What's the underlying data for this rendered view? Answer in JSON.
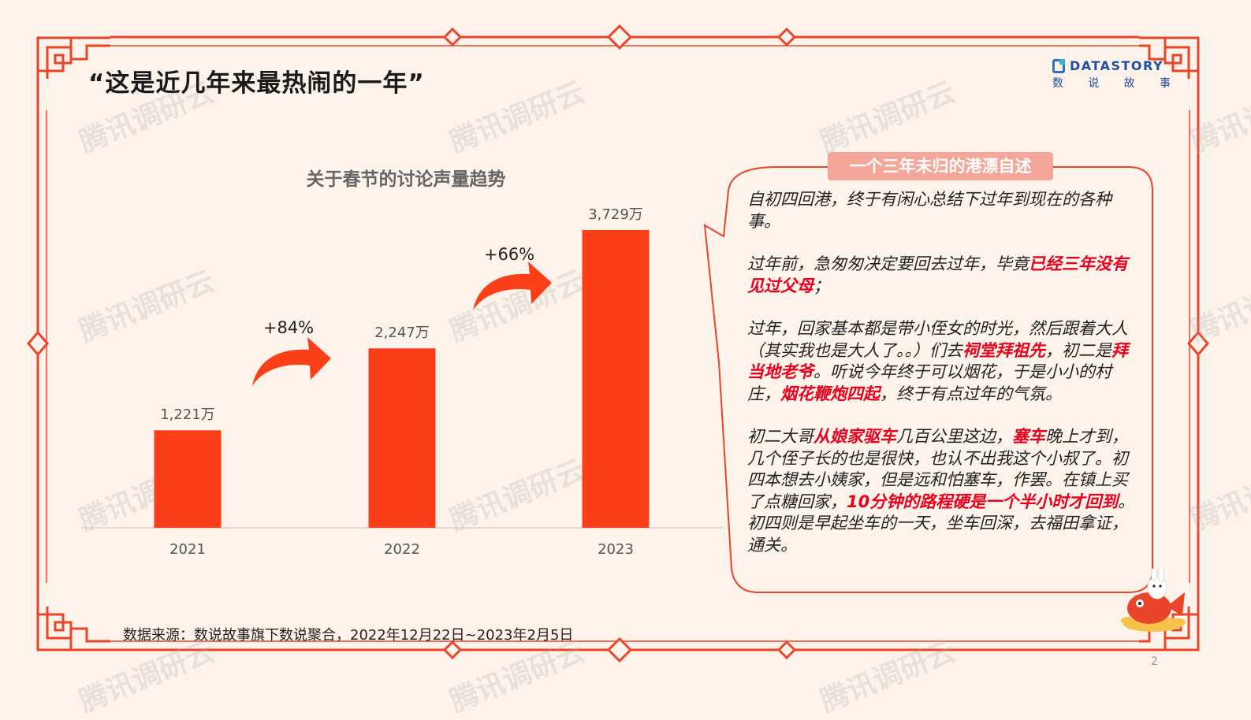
{
  "page": {
    "title": "“这是近几年来最热闹的一年”",
    "page_number": "2",
    "source": "数据来源：数说故事旗下数说聚合，2022年12月22日~2023年2月5日",
    "watermark": "腾讯调研云"
  },
  "logo": {
    "wordmark": "DATASTORY",
    "chinese": [
      "数",
      "说",
      "故",
      "事"
    ]
  },
  "colors": {
    "frame": "#e8452a",
    "bar": "#fb3f19",
    "arrow": "#fb3f19",
    "highlight": "#e8001c",
    "bubble_header": "#f3a699",
    "background": "#fdf3ea"
  },
  "chart_data": {
    "type": "bar",
    "title": "关于春节的讨论声量趋势",
    "categories": [
      "2021",
      "2022",
      "2023"
    ],
    "values": [
      1221,
      2247,
      3729
    ],
    "value_labels": [
      "1,221万",
      "2,247万",
      "3,729万"
    ],
    "unit": "万",
    "growth_labels": [
      "+84%",
      "+66%"
    ],
    "ylim": [
      0,
      4000
    ],
    "grid": false,
    "legend": "none"
  },
  "story": {
    "title": "一个三年未归的港漂自述",
    "paragraphs": [
      [
        {
          "t": "自初四回港，终于有闲心总结下过年到现在的各种事。",
          "h": false
        }
      ],
      [
        {
          "t": "过年前，急匆匆决定要回去过年，毕竟",
          "h": false
        },
        {
          "t": "已经三年没有见过父母",
          "h": true
        },
        {
          "t": "；",
          "h": false
        }
      ],
      [
        {
          "t": "过年，回家基本都是带小侄女的时光，然后跟着大人（其实我也是大人了。。）们去",
          "h": false
        },
        {
          "t": "祠堂拜祖先",
          "h": true
        },
        {
          "t": "，初二是",
          "h": false
        },
        {
          "t": "拜当地老爷",
          "h": true
        },
        {
          "t": "。听说今年终于可以烟花，于是小小的村庄，",
          "h": false
        },
        {
          "t": "烟花鞭炮四起",
          "h": true
        },
        {
          "t": "，终于有点过年的气氛。",
          "h": false
        }
      ],
      [
        {
          "t": "初二大哥",
          "h": false
        },
        {
          "t": "从娘家驱车",
          "h": true
        },
        {
          "t": "几百公里这边，",
          "h": false
        },
        {
          "t": "塞车",
          "h": true
        },
        {
          "t": "晚上才到，几个侄子长的也是很快，也认不出我这个小叔了。初四本想去小姨家，但是远和怕塞车，作罢。在镇上买了点糖回家，",
          "h": false
        },
        {
          "t": "10分钟的路程硬是一个半小时才回到",
          "h": true
        },
        {
          "t": "。初四则是早起坐车的一天，坐车回深，去福田拿证，通关。",
          "h": false
        }
      ]
    ]
  }
}
